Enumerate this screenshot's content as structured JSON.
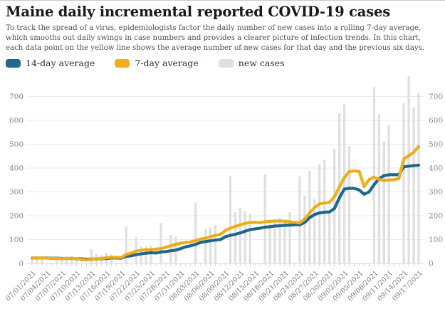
{
  "page": {
    "title": "Maine daily incremental reported COVID-19 cases",
    "subtitle": "To track the spread of a virus, epidemiologists factor the daily number of new cases into a rolling 7-day average, which smooths out daily swings in case numbers and provides a clearer picture of infection trends. In this chart, each data point on the yellow line shows the average number of new cases for that day and the previous six days."
  },
  "legend": {
    "items": [
      {
        "label": "14-day average",
        "color": "#20688c"
      },
      {
        "label": "7-day average",
        "color": "#efb01e"
      },
      {
        "label": "new cases",
        "color": "#e0e0e0"
      }
    ]
  },
  "chart_data": {
    "type": "bar+line",
    "title": "Maine daily incremental reported COVID-19 cases",
    "xlabel": "",
    "ylabel": "",
    "ylim": [
      0,
      800
    ],
    "grid": true,
    "legend_position": "top",
    "y_ticks": [
      0,
      100,
      200,
      300,
      400,
      500,
      600,
      700
    ],
    "x_tick_labels": [
      "07/01/2021",
      "07/04/2021",
      "07/07/2021",
      "07/10/2021",
      "07/13/2021",
      "07/16/2021",
      "07/19/2021",
      "07/22/2021",
      "07/25/2021",
      "07/28/2021",
      "07/31/2021",
      "08/03/2021",
      "08/06/2021",
      "08/09/2021",
      "08/12/2021",
      "08/15/2021",
      "08/18/2021",
      "08/21/2021",
      "08/24/2021",
      "08/27/2021",
      "08/30/2021",
      "09/02/2021",
      "09/05/2021",
      "09/08/2021",
      "09/11/2021",
      "09/14/2021",
      "09/17/2021"
    ],
    "x": [
      "07/01/2021",
      "07/02/2021",
      "07/03/2021",
      "07/04/2021",
      "07/05/2021",
      "07/06/2021",
      "07/07/2021",
      "07/08/2021",
      "07/09/2021",
      "07/10/2021",
      "07/11/2021",
      "07/12/2021",
      "07/13/2021",
      "07/14/2021",
      "07/15/2021",
      "07/16/2021",
      "07/17/2021",
      "07/18/2021",
      "07/19/2021",
      "07/20/2021",
      "07/21/2021",
      "07/22/2021",
      "07/23/2021",
      "07/24/2021",
      "07/25/2021",
      "07/26/2021",
      "07/27/2021",
      "07/28/2021",
      "07/29/2021",
      "07/30/2021",
      "07/31/2021",
      "08/01/2021",
      "08/02/2021",
      "08/03/2021",
      "08/04/2021",
      "08/05/2021",
      "08/06/2021",
      "08/07/2021",
      "08/08/2021",
      "08/09/2021",
      "08/10/2021",
      "08/11/2021",
      "08/12/2021",
      "08/13/2021",
      "08/14/2021",
      "08/15/2021",
      "08/16/2021",
      "08/17/2021",
      "08/18/2021",
      "08/19/2021",
      "08/20/2021",
      "08/21/2021",
      "08/22/2021",
      "08/23/2021",
      "08/24/2021",
      "08/25/2021",
      "08/26/2021",
      "08/27/2021",
      "08/28/2021",
      "08/29/2021",
      "08/30/2021",
      "08/31/2021",
      "09/01/2021",
      "09/02/2021",
      "09/03/2021",
      "09/04/2021",
      "09/05/2021",
      "09/06/2021",
      "09/07/2021",
      "09/08/2021",
      "09/09/2021",
      "09/10/2021",
      "09/11/2021",
      "09/12/2021",
      "09/13/2021",
      "09/14/2021",
      "09/15/2021",
      "09/16/2021",
      "09/17/2021"
    ],
    "series": [
      {
        "name": "new cases",
        "type": "bar",
        "color": "#e0e0e0",
        "values": [
          24,
          26,
          21,
          0,
          0,
          27,
          23,
          25,
          30,
          24,
          0,
          0,
          60,
          40,
          35,
          45,
          38,
          0,
          0,
          155,
          0,
          110,
          70,
          72,
          75,
          0,
          170,
          0,
          120,
          112,
          0,
          0,
          0,
          255,
          0,
          145,
          150,
          160,
          0,
          0,
          365,
          215,
          232,
          218,
          208,
          0,
          0,
          375,
          165,
          185,
          190,
          180,
          215,
          0,
          365,
          285,
          390,
          270,
          415,
          435,
          215,
          480,
          630,
          668,
          492,
          0,
          0,
          0,
          0,
          740,
          625,
          512,
          580,
          0,
          0,
          672,
          785,
          655,
          715
        ]
      },
      {
        "name": "14-day average",
        "type": "line",
        "color": "#20688c",
        "marker_color": "#10506e",
        "values": [
          23,
          23,
          23,
          23,
          22,
          22,
          21,
          21,
          21,
          20,
          19,
          18,
          18,
          19,
          20,
          21,
          23,
          23,
          22,
          30,
          32,
          37,
          40,
          43,
          45,
          44,
          48,
          50,
          53,
          56,
          62,
          70,
          74,
          80,
          88,
          92,
          95,
          98,
          100,
          112,
          118,
          122,
          128,
          135,
          142,
          145,
          148,
          152,
          154,
          157,
          158,
          160,
          161,
          162,
          162,
          172,
          192,
          205,
          212,
          215,
          216,
          230,
          275,
          312,
          315,
          315,
          308,
          290,
          300,
          330,
          355,
          368,
          372,
          372,
          372,
          405,
          408,
          410,
          412
        ]
      },
      {
        "name": "7-day average",
        "type": "line",
        "color": "#efb01e",
        "marker_color": "#c8920a",
        "values": [
          22,
          23,
          23,
          22,
          21,
          21,
          20,
          21,
          22,
          20,
          16,
          15,
          17,
          19,
          21,
          24,
          26,
          26,
          25,
          38,
          44,
          52,
          55,
          58,
          58,
          60,
          62,
          68,
          74,
          80,
          85,
          88,
          90,
          96,
          102,
          106,
          112,
          118,
          122,
          138,
          148,
          155,
          162,
          168,
          172,
          172,
          171,
          175,
          176,
          178,
          178,
          177,
          175,
          172,
          170,
          186,
          212,
          235,
          250,
          253,
          256,
          280,
          320,
          360,
          385,
          388,
          386,
          322,
          352,
          362,
          352,
          348,
          350,
          351,
          356,
          438,
          452,
          466,
          490
        ]
      }
    ]
  }
}
